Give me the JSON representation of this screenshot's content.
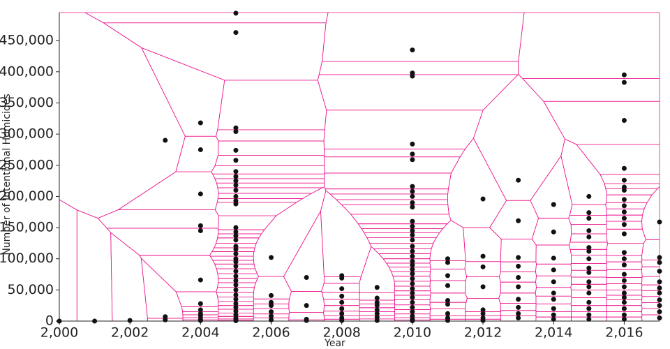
{
  "chart_data": {
    "type": "scatter",
    "x_label": "Year",
    "y_label": "Number of Intentional Homicides",
    "xlim": [
      2000,
      2017
    ],
    "ylim": [
      0,
      495000
    ],
    "xticks": [
      {
        "value": 2000,
        "label": "2,000"
      },
      {
        "value": 2002,
        "label": "2,002"
      },
      {
        "value": 2004,
        "label": "2,004"
      },
      {
        "value": 2006,
        "label": "2,006"
      },
      {
        "value": 2008,
        "label": "2,008"
      },
      {
        "value": 2010,
        "label": "2,010"
      },
      {
        "value": 2012,
        "label": "2,012"
      },
      {
        "value": 2014,
        "label": "2,014"
      },
      {
        "value": 2016,
        "label": "2,016"
      }
    ],
    "yticks": [
      0,
      {
        "value": 50000,
        "label": "50,000"
      },
      {
        "value": 100000,
        "label": "100,000"
      },
      {
        "value": 150000,
        "label": "150,000"
      },
      {
        "value": 200000,
        "label": "200,000"
      },
      {
        "value": 250000,
        "label": "250,000"
      },
      {
        "value": 300000,
        "label": "300,000"
      },
      {
        "value": 350000,
        "label": "350,000"
      },
      {
        "value": 400000,
        "label": "400,000"
      },
      {
        "value": 450000,
        "label": "450,000"
      }
    ],
    "color": "#111111",
    "voronoi_color": "#ee1a8f",
    "x": [
      2000,
      2001,
      2002,
      2003,
      2003,
      2003,
      2004,
      2004,
      2004,
      2004,
      2004,
      2004,
      2004,
      2004,
      2004,
      2004,
      2004,
      2004,
      2005,
      2005,
      2005,
      2005,
      2005,
      2005,
      2005,
      2005,
      2005,
      2005,
      2005,
      2005,
      2005,
      2005,
      2005,
      2005,
      2005,
      2005,
      2005,
      2005,
      2005,
      2005,
      2005,
      2005,
      2005,
      2005,
      2005,
      2005,
      2005,
      2005,
      2005,
      2005,
      2005,
      2005,
      2005,
      2005,
      2005,
      2005,
      2006,
      2006,
      2006,
      2006,
      2006,
      2006,
      2006,
      2007,
      2007,
      2007,
      2007,
      2008,
      2008,
      2008,
      2008,
      2008,
      2008,
      2008,
      2008,
      2008,
      2009,
      2009,
      2009,
      2009,
      2009,
      2009,
      2009,
      2009,
      2010,
      2010,
      2010,
      2010,
      2010,
      2010,
      2010,
      2010,
      2010,
      2010,
      2010,
      2010,
      2010,
      2010,
      2010,
      2010,
      2010,
      2010,
      2010,
      2010,
      2010,
      2010,
      2010,
      2010,
      2010,
      2010,
      2010,
      2010,
      2010,
      2010,
      2010,
      2010,
      2010,
      2010,
      2011,
      2011,
      2011,
      2011,
      2011,
      2011,
      2011,
      2011,
      2011,
      2012,
      2012,
      2012,
      2012,
      2012,
      2012,
      2012,
      2012,
      2013,
      2013,
      2013,
      2013,
      2013,
      2013,
      2013,
      2013,
      2013,
      2013,
      2014,
      2014,
      2014,
      2014,
      2014,
      2014,
      2014,
      2014,
      2014,
      2014,
      2015,
      2015,
      2015,
      2015,
      2015,
      2015,
      2015,
      2015,
      2015,
      2015,
      2015,
      2015,
      2015,
      2015,
      2015,
      2015,
      2015,
      2016,
      2016,
      2016,
      2016,
      2016,
      2016,
      2016,
      2016,
      2016,
      2016,
      2016,
      2016,
      2016,
      2016,
      2016,
      2016,
      2016,
      2016,
      2016,
      2016,
      2016,
      2016,
      2016,
      2016,
      2016,
      2017,
      2017,
      2017,
      2017,
      2017,
      2017,
      2017,
      2017,
      2017,
      2017,
      2017
    ],
    "values": [
      0,
      0,
      1000,
      290000,
      7000,
      2000,
      318000,
      275000,
      204000,
      153000,
      145000,
      66000,
      28000,
      18000,
      12000,
      8000,
      3000,
      1000,
      494000,
      463000,
      310000,
      304000,
      274000,
      258000,
      240000,
      232000,
      225000,
      218000,
      210000,
      200000,
      193000,
      188000,
      150000,
      143000,
      137000,
      130000,
      120000,
      115000,
      108000,
      100000,
      95000,
      88000,
      80000,
      72000,
      65000,
      58000,
      50000,
      42000,
      35000,
      28000,
      22000,
      16000,
      10000,
      5000,
      2000,
      500,
      102000,
      41000,
      30000,
      25000,
      15000,
      8000,
      2000,
      70000,
      25000,
      3000,
      1000,
      73000,
      69000,
      52000,
      40000,
      30000,
      20000,
      12000,
      5000,
      1000,
      54000,
      37000,
      30000,
      25000,
      18000,
      12000,
      6000,
      1000,
      435000,
      398000,
      393000,
      284000,
      268000,
      259000,
      216000,
      208000,
      200000,
      190000,
      183000,
      160000,
      152000,
      145000,
      138000,
      130000,
      120000,
      112000,
      104000,
      96000,
      90000,
      83000,
      76000,
      68000,
      60000,
      52000,
      45000,
      38000,
      30000,
      22000,
      15000,
      8000,
      3000,
      500,
      100000,
      94000,
      73000,
      57000,
      33000,
      27000,
      12000,
      5000,
      1000,
      196000,
      104000,
      87000,
      55000,
      18000,
      12000,
      5000,
      1000,
      226000,
      161000,
      102000,
      88000,
      70000,
      55000,
      35000,
      22000,
      12000,
      5000,
      187000,
      143000,
      101000,
      82000,
      63000,
      45000,
      35000,
      20000,
      10000,
      3000,
      200000,
      174000,
      165000,
      145000,
      135000,
      118000,
      112000,
      100000,
      85000,
      78000,
      63000,
      55000,
      45000,
      30000,
      20000,
      10000,
      3000,
      395000,
      383000,
      322000,
      245000,
      226000,
      215000,
      210000,
      195000,
      185000,
      175000,
      165000,
      155000,
      140000,
      110000,
      100000,
      90000,
      75000,
      65000,
      55000,
      45000,
      38000,
      30000,
      20000,
      10000,
      3000,
      159000,
      102000,
      94000,
      80000,
      63000,
      53000,
      45000,
      34000,
      25000,
      15000,
      5000
    ]
  }
}
